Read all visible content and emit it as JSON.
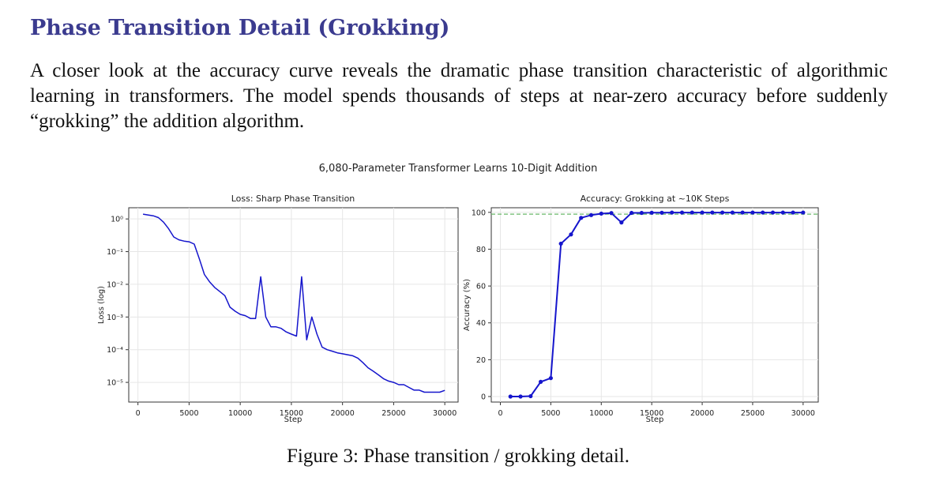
{
  "section": {
    "heading": "Phase Transition Detail (Grokking)",
    "paragraph": "A closer look at the accuracy curve reveals the dramatic phase transition characteristic of algorithmic learning in transformers. The model spends thousands of steps at near-zero accuracy before suddenly “grokking” the addition algorithm."
  },
  "figure": {
    "suptitle": "6,080-Parameter Transformer Learns 10-Digit Addition",
    "caption": "Figure 3: Phase transition / grokking detail."
  },
  "chart_data": [
    {
      "type": "line",
      "title": "Loss: Sharp Phase Transition",
      "xlabel": "Step",
      "ylabel": "Loss (log)",
      "yscale": "log",
      "xlim": [
        -900,
        31300
      ],
      "ylim": [
        2.5e-06,
        2.2
      ],
      "xticks": [
        0,
        5000,
        10000,
        15000,
        20000,
        25000,
        30000
      ],
      "xtick_labels": [
        "0",
        "5000",
        "10000",
        "15000",
        "20000",
        "25000",
        "30000"
      ],
      "yticks": [
        1,
        0.1,
        0.01,
        0.001,
        0.0001,
        1e-05
      ],
      "ytick_labels": [
        "10⁰",
        "10⁻¹",
        "10⁻²",
        "10⁻³",
        "10⁻⁴",
        "10⁻⁵"
      ],
      "grid": true,
      "color": "#1515cc",
      "series": [
        {
          "x": [
            500,
            1500,
            2000,
            2500,
            3000,
            3500,
            4000,
            4500,
            5000,
            5500,
            6000,
            6500,
            7000,
            7500,
            8000,
            8500,
            9000,
            9500,
            10000,
            10500,
            11000,
            11500,
            12000,
            12500,
            13000,
            13500,
            14000,
            14500,
            15000,
            15500,
            16000,
            16500,
            17000,
            17500,
            18000,
            18500,
            19000,
            19500,
            20000,
            20500,
            21000,
            21500,
            22000,
            22500,
            23000,
            23500,
            24000,
            24500,
            25000,
            25500,
            26000,
            26500,
            27000,
            27500,
            28000,
            28500,
            29000,
            29500,
            30000
          ],
          "y": [
            1.4,
            1.25,
            1.1,
            0.8,
            0.5,
            0.28,
            0.23,
            0.21,
            0.2,
            0.17,
            0.06,
            0.02,
            0.012,
            0.008,
            0.006,
            0.0045,
            0.002,
            0.0015,
            0.0012,
            0.0011,
            0.0009,
            0.0009,
            0.017,
            0.001,
            0.0005,
            0.0005,
            0.00045,
            0.00035,
            0.0003,
            0.00026,
            0.017,
            0.0002,
            0.001,
            0.0003,
            0.00012,
            0.0001,
            9e-05,
            8e-05,
            7.5e-05,
            7e-05,
            6.5e-05,
            5.5e-05,
            4e-05,
            2.8e-05,
            2.2e-05,
            1.7e-05,
            1.3e-05,
            1.1e-05,
            1e-05,
            8.5e-06,
            8.5e-06,
            7e-06,
            5.8e-06,
            5.8e-06,
            5e-06,
            5e-06,
            5e-06,
            5e-06,
            5.7e-06
          ]
        }
      ]
    },
    {
      "type": "line",
      "title": "Accuracy: Grokking at ~10K Steps",
      "xlabel": "Step",
      "ylabel": "Accuracy (%)",
      "xlim": [
        -900,
        31500
      ],
      "ylim": [
        -3,
        102.5
      ],
      "xticks": [
        0,
        5000,
        10000,
        15000,
        20000,
        25000,
        30000
      ],
      "xtick_labels": [
        "0",
        "5000",
        "10000",
        "15000",
        "20000",
        "25000",
        "30000"
      ],
      "yticks": [
        0,
        20,
        40,
        60,
        80,
        100
      ],
      "ytick_labels": [
        "0",
        "20",
        "40",
        "60",
        "80",
        "100"
      ],
      "grid": true,
      "color": "#1515cc",
      "reference_line": {
        "y": 99,
        "color": "#6ab86a",
        "style": "dashed"
      },
      "series": [
        {
          "x": [
            1000,
            2000,
            3000,
            4000,
            5000,
            6000,
            7000,
            8000,
            9000,
            10000,
            11000,
            12000,
            13000,
            14000,
            15000,
            16000,
            17000,
            18000,
            19000,
            20000,
            21000,
            22000,
            23000,
            24000,
            25000,
            26000,
            27000,
            28000,
            29000,
            30000
          ],
          "y": [
            0,
            0,
            0.2,
            8,
            10,
            83,
            88,
            97,
            98.5,
            99.3,
            99.6,
            94.5,
            99.7,
            99.7,
            99.8,
            99.8,
            99.9,
            99.9,
            99.9,
            99.9,
            99.9,
            99.9,
            99.9,
            99.9,
            99.9,
            99.9,
            99.9,
            99.9,
            99.9,
            99.9
          ]
        }
      ]
    }
  ]
}
